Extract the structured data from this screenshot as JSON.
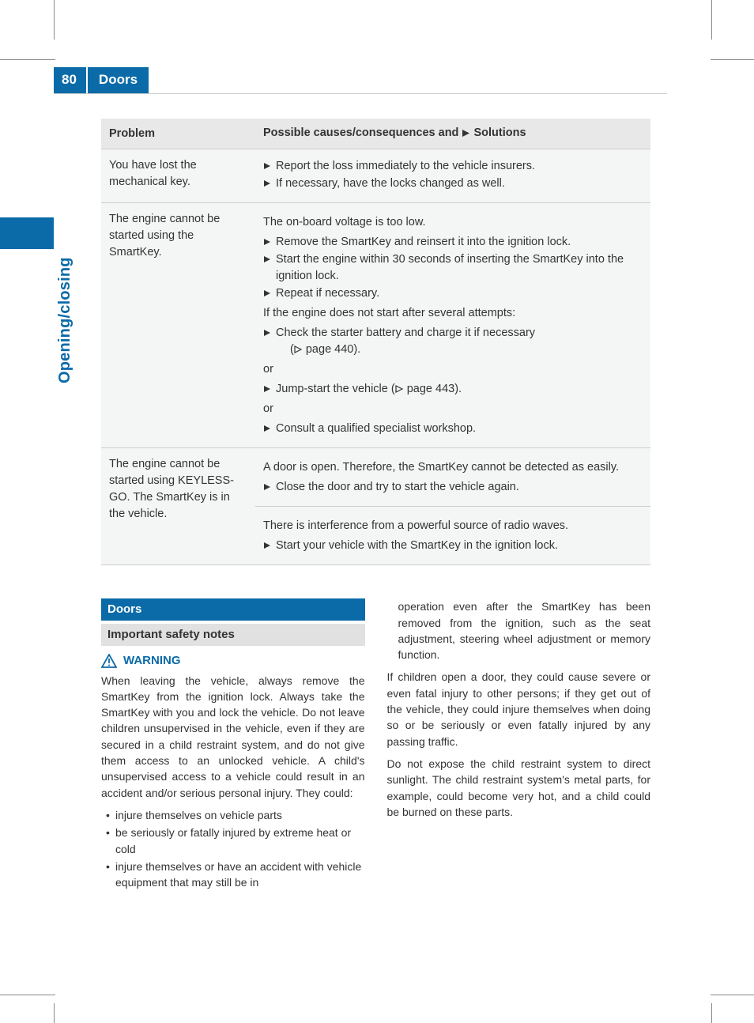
{
  "colors": {
    "brand": "#0a6ba8",
    "row_bg": "#f4f6f6",
    "header_bg": "#e8e8e8",
    "sub_head_bg": "#e1e1e1",
    "rule": "#cccccc",
    "text": "#333333"
  },
  "header": {
    "page_number": "80",
    "title": "Doors"
  },
  "side_tab": "Opening/closing",
  "table": {
    "col1_header": "Problem",
    "col2_header_pre": "Possible causes/consequences and ",
    "col2_header_post": " Solutions",
    "rows": [
      {
        "problem": "You have lost the mechanical key.",
        "solutions": [
          {
            "type": "step",
            "text": "Report the loss immediately to the vehicle insurers."
          },
          {
            "type": "step",
            "text": "If necessary, have the locks changed as well."
          }
        ]
      },
      {
        "problem": "The engine cannot be started using the SmartKey.",
        "solutions": [
          {
            "type": "plain",
            "text": "The on-board voltage is too low."
          },
          {
            "type": "step",
            "text": "Remove the SmartKey and reinsert it into the ignition lock."
          },
          {
            "type": "step",
            "text": "Start the engine within 30 seconds of inserting the SmartKey into the ignition lock."
          },
          {
            "type": "step",
            "text": "Repeat if necessary."
          },
          {
            "type": "plain",
            "text": "If the engine does not start after several attempts:"
          },
          {
            "type": "step_page",
            "text": "Check the starter battery and charge it if necessary",
            "page": "440"
          },
          {
            "type": "or",
            "text": "or"
          },
          {
            "type": "step_page_inline",
            "text_pre": "Jump-start the vehicle (",
            "page": "443",
            "text_post": ")."
          },
          {
            "type": "or",
            "text": "or"
          },
          {
            "type": "step",
            "text": "Consult a qualified specialist workshop."
          }
        ]
      },
      {
        "problem": "The engine cannot be started using KEYLESS-GO. The SmartKey is in the vehicle.",
        "rowspan": 2,
        "solutions": [
          {
            "type": "plain",
            "text": "A door is open. Therefore, the SmartKey cannot be detected as easily."
          },
          {
            "type": "step",
            "text": "Close the door and try to start the vehicle again."
          }
        ]
      },
      {
        "subrow": true,
        "solutions": [
          {
            "type": "plain",
            "text": "There is interference from a powerful source of radio waves."
          },
          {
            "type": "step",
            "text": "Start your vehicle with the SmartKey in the ignition lock."
          }
        ]
      }
    ]
  },
  "section": {
    "heading": "Doors",
    "subheading": "Important safety notes",
    "warning_label": "WARNING",
    "left_paras": [
      "When leaving the vehicle, always remove the SmartKey from the ignition lock. Always take the SmartKey with you and lock the vehicle. Do not leave children unsupervised in the vehicle, even if they are secured in a child restraint system, and do not give them access to an unlocked vehicle. A child's unsupervised access to a vehicle could result in an accident and/or serious personal injury. They could:"
    ],
    "bullets": [
      "injure themselves on vehicle parts",
      "be seriously or fatally injured by extreme heat or cold",
      "injure themselves or have an accident with vehicle equipment that may still be in"
    ],
    "right_paras": [
      "operation even after the SmartKey has been removed from the ignition, such as the seat adjustment, steering wheel adjustment or memory function.",
      "If children open a door, they could cause severe or even fatal injury to other persons; if they get out of the vehicle, they could injure themselves when doing so or be seriously or even fatally injured by any passing traffic.",
      "Do not expose the child restraint system to direct sunlight. The child restraint system's metal parts, for example, could become very hot, and a child could be burned on these parts."
    ]
  }
}
